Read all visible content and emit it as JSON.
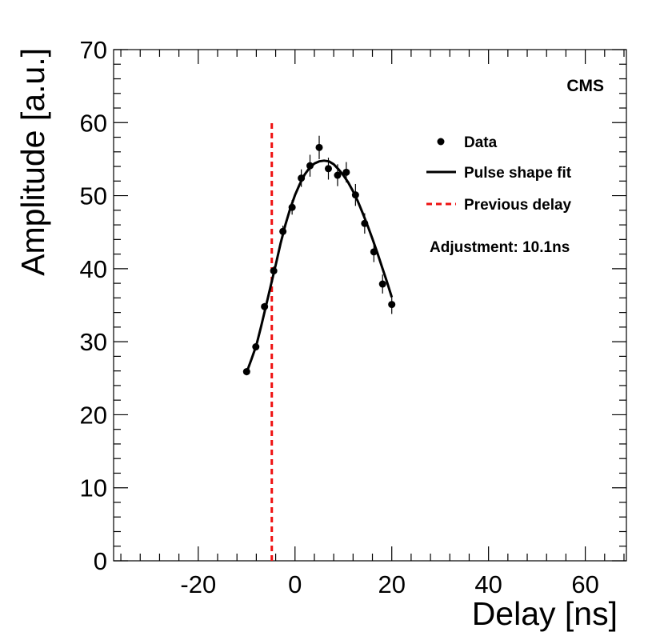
{
  "chart_data": {
    "type": "scatter",
    "title": "",
    "experiment_label": "CMS",
    "xlabel": "Delay [ns]",
    "ylabel": "Amplitude [a.u.]",
    "xlim": [
      -37.5,
      68.5
    ],
    "ylim": [
      0,
      70
    ],
    "x_ticks": [
      -20,
      0,
      20,
      40,
      60
    ],
    "y_ticks": [
      0,
      10,
      20,
      30,
      40,
      50,
      60,
      70
    ],
    "grid": false,
    "legend_position": "top-right",
    "legend": [
      {
        "label": "Data",
        "style": "marker"
      },
      {
        "label": "Pulse shape fit",
        "style": "solid-line"
      },
      {
        "label": "Previous delay",
        "style": "dashed-red-line"
      }
    ],
    "annotation": "Adjustment: 10.1ns",
    "series": [
      {
        "name": "Data",
        "x": [
          -10,
          -8.1,
          -6.3,
          -4.4,
          -2.5,
          -0.6,
          1.3,
          3.1,
          5.0,
          6.9,
          8.8,
          10.6,
          12.5,
          14.4,
          16.3,
          18.1,
          20.0
        ],
        "y": [
          25.9,
          29.3,
          34.8,
          39.7,
          45.1,
          48.4,
          52.4,
          54.1,
          56.6,
          53.7,
          52.8,
          53.2,
          50.1,
          46.2,
          42.3,
          37.9,
          35.1
        ],
        "errors": [
          0.5,
          0.5,
          0.5,
          0.6,
          0.8,
          1.0,
          1.2,
          1.5,
          1.6,
          1.5,
          1.5,
          1.4,
          1.5,
          1.4,
          1.4,
          1.3,
          1.3
        ]
      },
      {
        "name": "Pulse shape fit",
        "x": [
          -10.0,
          -9.0,
          -8.0,
          -7.0,
          -6.0,
          -5.0,
          -4.0,
          -3.0,
          -2.0,
          -1.0,
          0.0,
          1.0,
          2.0,
          3.0,
          4.0,
          5.0,
          6.0,
          7.0,
          8.0,
          9.0,
          10.0,
          11.0,
          12.0,
          13.0,
          14.0,
          15.0,
          16.0,
          17.0,
          18.0,
          19.0,
          20.0
        ],
        "y": [
          25.8,
          27.6,
          29.5,
          32.1,
          34.9,
          37.7,
          40.5,
          43.4,
          46.0,
          48.2,
          50.1,
          51.6,
          52.9,
          53.8,
          54.4,
          54.7,
          54.8,
          54.7,
          54.3,
          53.6,
          52.8,
          51.8,
          50.6,
          49.2,
          47.6,
          45.9,
          44.1,
          42.2,
          40.2,
          38.2,
          36.1
        ]
      }
    ],
    "previous_delay": {
      "x": -4.8,
      "y_range": [
        0,
        60
      ]
    }
  }
}
